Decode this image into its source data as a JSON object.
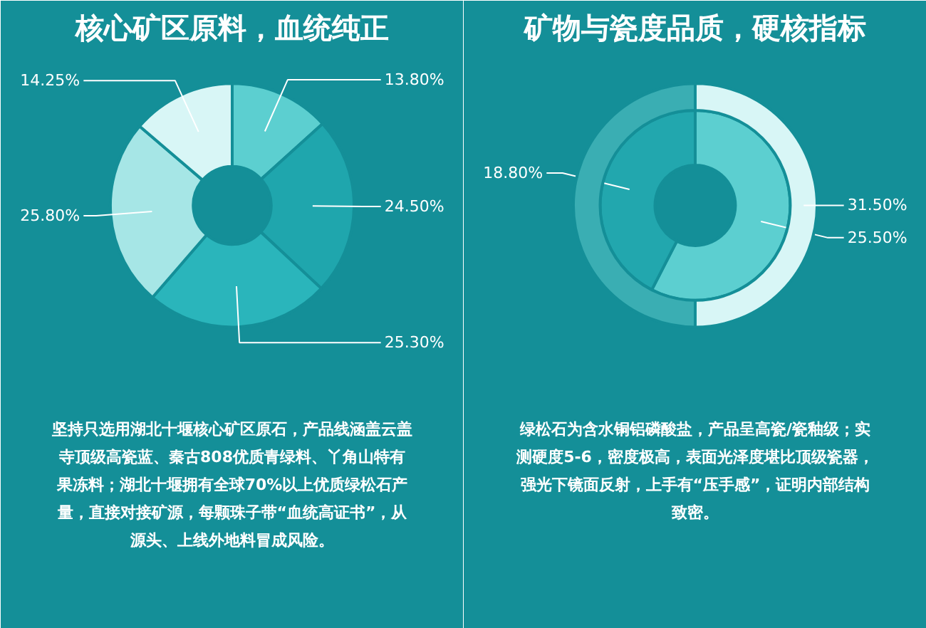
{
  "chart_data": [
    {
      "type": "donut",
      "title": "核心矿区原料，血统纯正",
      "categories": [
        null,
        null,
        null,
        null,
        null
      ],
      "values": [
        13.8,
        24.5,
        25.3,
        25.8,
        14.25
      ],
      "colors": [
        "#5ccfd0",
        "#1fa6ad",
        "#2ab5bb",
        "#a6e6e6",
        "#d8f6f6"
      ],
      "value_labels": [
        "13.80%",
        "24.50%",
        "25.30%",
        "25.80%",
        "14.25%"
      ],
      "annotations": [
        "坚持只选用湖北十堰核心矿区原石，产品线涵盖云盖寺顶级高瓷蓝、秦古808优质青绿料、丫角山特有果冻料；湖北十堰拥有全球70%以上优质绿松石产量，直接对接矿源，每颗珠子带“血统高证书”，从源头、上线外地料冒成风险。"
      ]
    },
    {
      "type": "donut",
      "title": "矿物与瓷度品质，硬核指标",
      "series": [
        {
          "values": [
            25.5,
            18.8
          ],
          "colors": [
            "#5ccfd0",
            "#22a7ae"
          ],
          "value_labels": [
            "25.50%",
            "18.80%"
          ]
        },
        {
          "values": [
            31.5,
            31.5
          ],
          "colors": [
            "#d8f6f6",
            "#3aaeb3"
          ],
          "value_labels": [
            "31.50%",
            null
          ]
        }
      ],
      "annotations": [
        "绿松石为含水铜铝磷酸盐，产品呈高瓷/瓷釉级；实测硬度5-6，密度极高，表面光泽度堪比顶级瓷器，强光下镜面反射，上手有“压手感”，证明内部结构致密。"
      ]
    }
  ]
}
